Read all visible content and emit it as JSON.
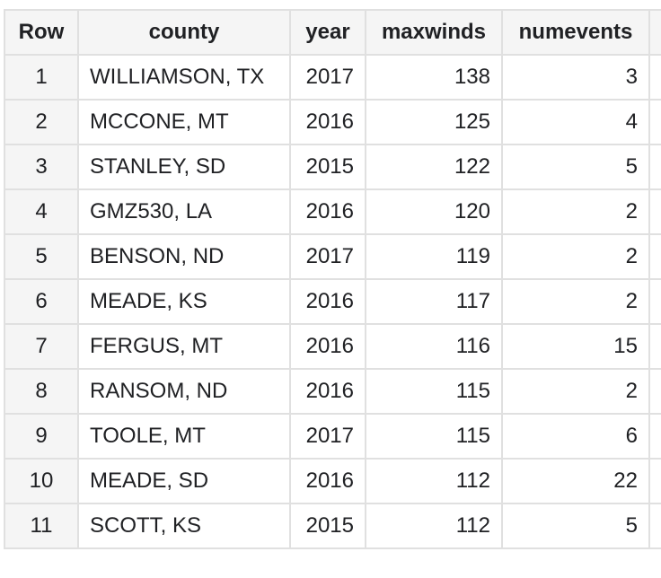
{
  "table": {
    "headers": [
      "Row",
      "county",
      "year",
      "maxwinds",
      "numevents"
    ],
    "rows": [
      [
        "1",
        "WILLIAMSON, TX",
        "2017",
        "138",
        "3"
      ],
      [
        "2",
        "MCCONE, MT",
        "2016",
        "125",
        "4"
      ],
      [
        "3",
        "STANLEY, SD",
        "2015",
        "122",
        "5"
      ],
      [
        "4",
        "GMZ530, LA",
        "2016",
        "120",
        "2"
      ],
      [
        "5",
        "BENSON, ND",
        "2017",
        "119",
        "2"
      ],
      [
        "6",
        "MEADE, KS",
        "2016",
        "117",
        "2"
      ],
      [
        "7",
        "FERGUS, MT",
        "2016",
        "116",
        "15"
      ],
      [
        "8",
        "RANSOM, ND",
        "2016",
        "115",
        "2"
      ],
      [
        "9",
        "TOOLE, MT",
        "2017",
        "115",
        "6"
      ],
      [
        "10",
        "MEADE, SD",
        "2016",
        "112",
        "22"
      ],
      [
        "11",
        "SCOTT, KS",
        "2015",
        "112",
        "5"
      ]
    ]
  }
}
